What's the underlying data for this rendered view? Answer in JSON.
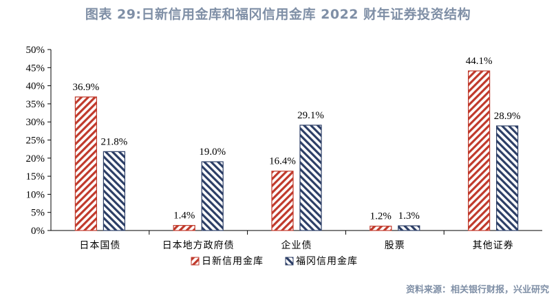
{
  "title": "图表 29:日新信用金库和福冈信用金库 2022 财年证券投资结构",
  "source": "资料来源：相关银行财报，兴业研究",
  "chart_data": {
    "type": "bar",
    "categories": [
      "日本国债",
      "日本地方政府债",
      "企业债",
      "股票",
      "其他证券"
    ],
    "series": [
      {
        "name": "日新信用金库",
        "values": [
          36.9,
          1.4,
          16.4,
          1.2,
          44.1
        ],
        "labels": [
          "36.9%",
          "1.4%",
          "16.4%",
          "1.2%",
          "44.1%"
        ],
        "color": "#c0392b"
      },
      {
        "name": "福冈信用金库",
        "values": [
          21.8,
          19.0,
          29.1,
          1.3,
          28.9
        ],
        "labels": [
          "21.8%",
          "19.0%",
          "29.1%",
          "1.3%",
          "28.9%"
        ],
        "color": "#2c3e66"
      }
    ],
    "y_ticks": [
      "0%",
      "5%",
      "10%",
      "15%",
      "20%",
      "25%",
      "30%",
      "35%",
      "40%",
      "45%",
      "50%"
    ],
    "ylim": [
      0,
      50
    ],
    "grid": false,
    "legend_position": "bottom"
  }
}
